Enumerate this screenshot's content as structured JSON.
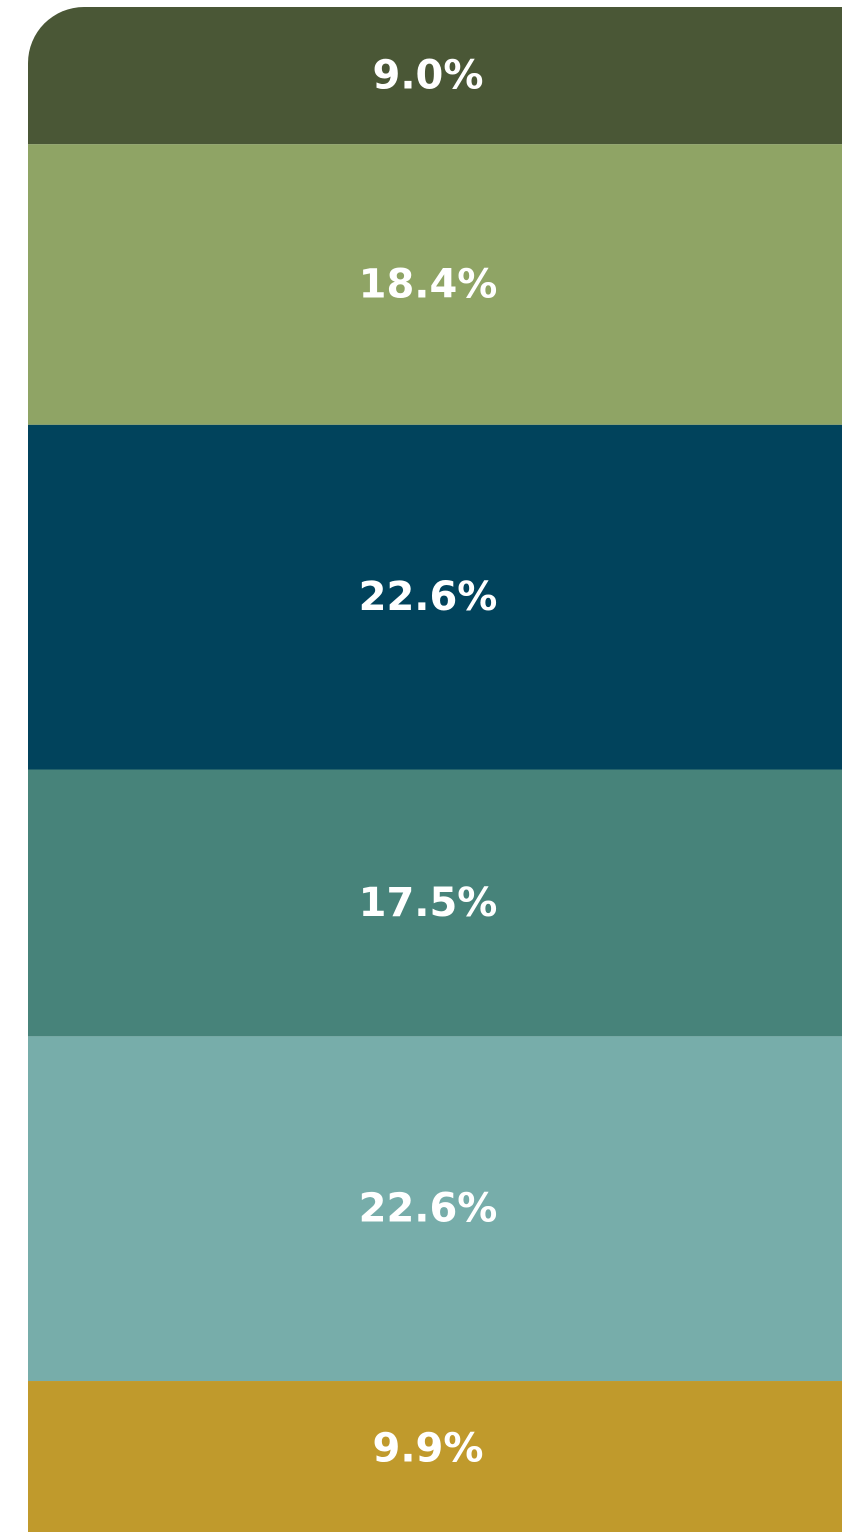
{
  "chart_data": {
    "type": "stacked_column",
    "values": [
      9.0,
      18.4,
      22.6,
      17.5,
      22.6,
      9.9
    ],
    "value_labels": [
      "9.0%",
      "18.4%",
      "22.6%",
      "17.5%",
      "22.6%",
      "9.9%"
    ],
    "colors": [
      "#4a5736",
      "#8fa465",
      "#01435c",
      "#47837a",
      "#77adaa",
      "#c09a2c"
    ]
  }
}
